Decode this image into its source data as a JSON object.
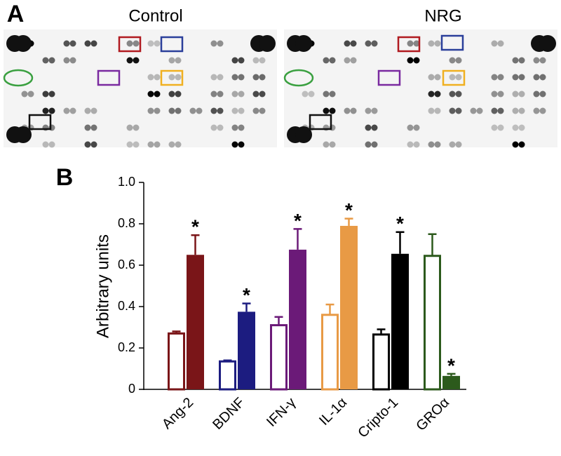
{
  "panel_a": {
    "label": "A",
    "images": [
      {
        "title": "Control"
      },
      {
        "title": "NRG"
      }
    ]
  },
  "chart_data": {
    "type": "bar",
    "panel_label": "B",
    "y_label": "Arbitrary units",
    "categories": [
      "Ang-2",
      "BDNF",
      "IFN-γ",
      "IL-1α",
      "Cripto-1",
      "GROα"
    ],
    "colors": [
      "#7a1518",
      "#1c1c80",
      "#6b1a78",
      "#e89a45",
      "#000000",
      "#2c5a1c"
    ],
    "series": [
      {
        "style": "outline",
        "values": [
          0.27,
          0.135,
          0.31,
          0.36,
          0.265,
          0.645
        ],
        "errors": [
          0.01,
          0.005,
          0.04,
          0.05,
          0.025,
          0.105
        ]
      },
      {
        "style": "filled",
        "values": [
          0.65,
          0.375,
          0.675,
          0.79,
          0.655,
          0.065
        ],
        "errors": [
          0.095,
          0.04,
          0.1,
          0.035,
          0.105,
          0.01
        ],
        "annotations": [
          "*",
          "*",
          "*",
          "*",
          "*",
          "*"
        ]
      }
    ],
    "ylim": [
      0,
      1
    ],
    "yticks": [
      0,
      0.2,
      0.4,
      0.6,
      0.8,
      {
        "value": 1,
        "label": "1.0"
      }
    ],
    "grid": false
  }
}
